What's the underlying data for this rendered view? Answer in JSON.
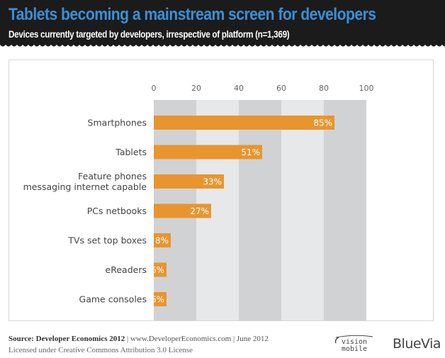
{
  "header": {
    "title": "Tablets becoming a mainstream screen for developers",
    "subtitle": "Devices currently targeted by developers, irrespective of platform (n=1,369)",
    "title_color": "#3b8fd6",
    "background": "#1b1b1b"
  },
  "chart_data": {
    "type": "bar",
    "orientation": "horizontal",
    "title": "Tablets becoming a mainstream screen for developers",
    "subtitle": "Devices currently targeted by developers, irrespective of platform (n=1,369)",
    "categories": [
      [
        "Smartphones"
      ],
      [
        "Tablets"
      ],
      [
        "Feature phones",
        "messaging internet capable"
      ],
      [
        "PCs netbooks"
      ],
      [
        "TVs set top boxes"
      ],
      [
        "eReaders"
      ],
      [
        "Game consoles"
      ]
    ],
    "values": [
      85,
      51,
      33,
      27,
      8,
      6,
      6
    ],
    "data_labels": [
      "85%",
      "51%",
      "33%",
      "27%",
      "8%",
      "6%",
      "6%"
    ],
    "xlabel": "",
    "ylabel": "",
    "xlim": [
      0,
      100
    ],
    "xticks": [
      0,
      20,
      40,
      60,
      80,
      100
    ],
    "tick_position": "top",
    "grid": "alternating vertical bands",
    "bar_color": "#e8952f",
    "band_colors": [
      "#d1d2d4",
      "#e7e8e9"
    ]
  },
  "footer": {
    "source_bold": "Source: Developer Economics 2012",
    "source_rest": " | www.DeveloperEconomics.com | June 2012",
    "license": "Licensed under Creative Commons Attribution 3.0 License",
    "logo1_line1": "vision",
    "logo1_line2": "mobile",
    "logo2": "BlueVia"
  }
}
